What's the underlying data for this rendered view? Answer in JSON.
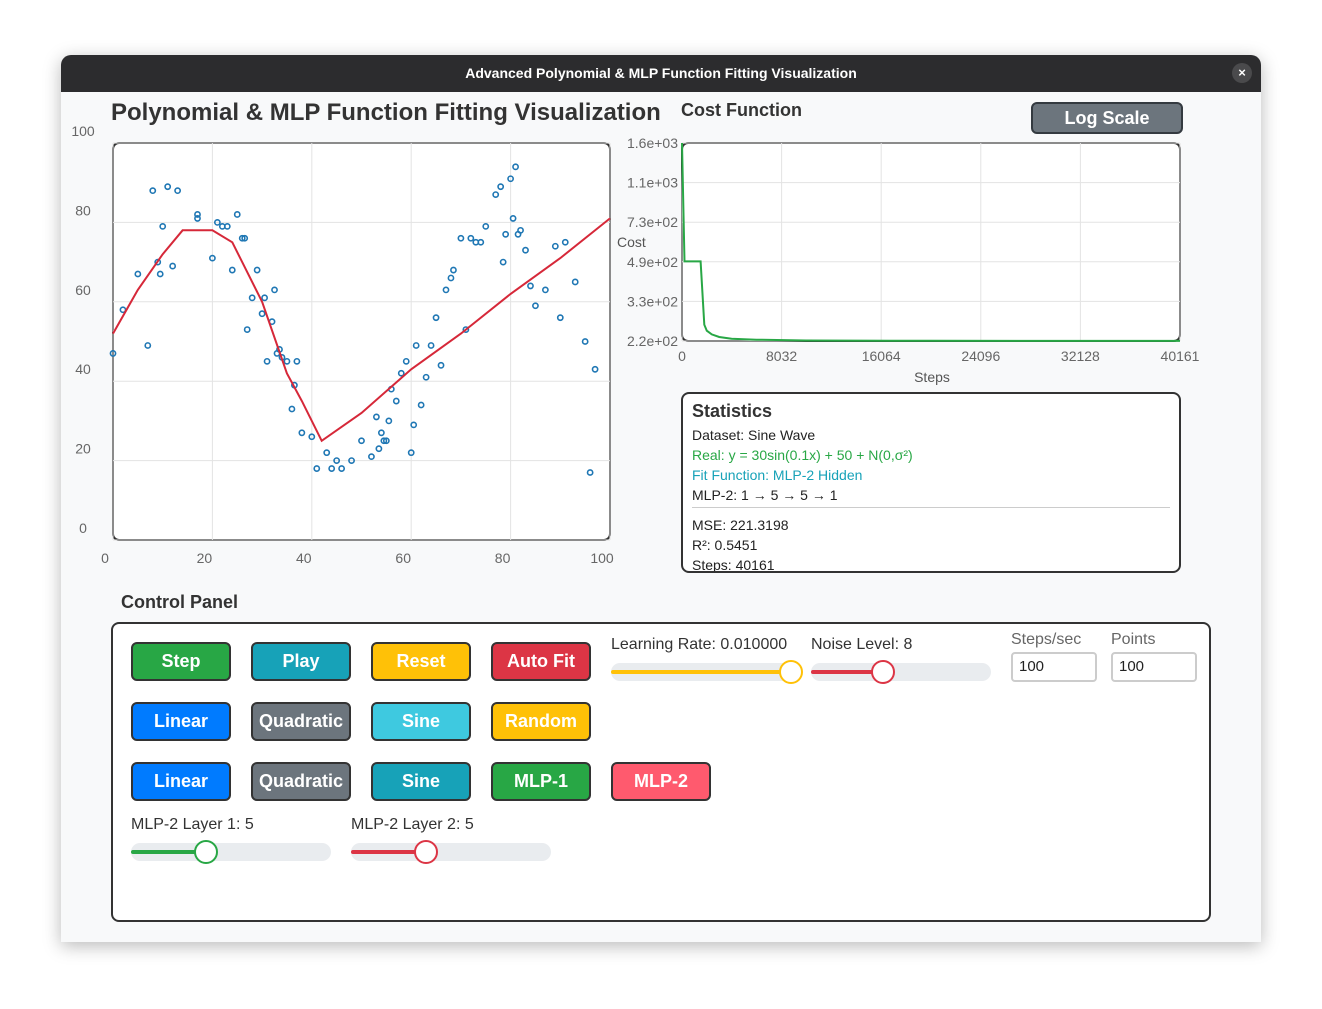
{
  "window": {
    "title": "Advanced Polynomial & MLP Function Fitting Visualization",
    "close_label": "×"
  },
  "main_title": "Polynomial & MLP Function Fitting Visualization",
  "cost": {
    "title": "Cost Function",
    "log_scale_label": "Log Scale"
  },
  "colors": {
    "points": "#1f77b4",
    "fit": "#d62839",
    "cost": "#28a745",
    "formula": "#28a745",
    "fit_text": "#17a2b8"
  },
  "chart_data": [
    {
      "type": "scatter",
      "title": "",
      "xlabel": "",
      "ylabel": "",
      "xlim": [
        0,
        100
      ],
      "ylim": [
        0,
        100
      ],
      "x_ticks": [
        "0",
        "20",
        "40",
        "60",
        "80",
        "100"
      ],
      "y_ticks": [
        "0",
        "20",
        "40",
        "60",
        "80",
        "100"
      ],
      "grid": true,
      "series": [
        {
          "kind": "points",
          "x": [
            0,
            2,
            5,
            7,
            8,
            9,
            9.5,
            10,
            11,
            12,
            13,
            17,
            17,
            20,
            21,
            22,
            23,
            24,
            25,
            26,
            26.5,
            27,
            28,
            29,
            30,
            30.5,
            31,
            32,
            32.5,
            33,
            33.5,
            34,
            35,
            36,
            36.5,
            37,
            38,
            40,
            41,
            43,
            44,
            45,
            46,
            48,
            50,
            52,
            53,
            53.5,
            54,
            54.5,
            55,
            55.5,
            56,
            57,
            58,
            59,
            60,
            60.5,
            61,
            62,
            63,
            64,
            65,
            66,
            67,
            68,
            68.5,
            70,
            71,
            72,
            73,
            74,
            75,
            77,
            78,
            78.5,
            79,
            80,
            80.5,
            81,
            81.5,
            82,
            83,
            84,
            85,
            87,
            89,
            90,
            91,
            93,
            95,
            96,
            97
          ],
          "y": [
            47,
            58,
            67,
            49,
            88,
            70,
            67,
            79,
            89,
            69,
            88,
            81,
            82,
            71,
            80,
            79,
            79,
            68,
            82,
            76,
            76,
            53,
            61,
            68,
            57,
            61,
            45,
            55,
            63,
            47,
            48,
            46,
            45,
            33,
            39,
            45,
            27,
            26,
            18,
            22,
            18,
            20,
            18,
            20,
            25,
            21,
            31,
            23,
            27,
            25,
            25,
            30,
            38,
            35,
            42,
            45,
            22,
            29,
            49,
            34,
            41,
            49,
            56,
            44,
            63,
            66,
            68,
            76,
            53,
            76,
            75,
            75,
            79,
            87,
            89,
            70,
            77,
            91,
            81,
            94,
            77,
            78,
            73,
            64,
            59,
            63,
            74,
            56,
            75,
            65,
            50,
            17,
            43
          ]
        },
        {
          "kind": "fit-line",
          "x": [
            0,
            5,
            10,
            14,
            20,
            24,
            26,
            30,
            35,
            38,
            42,
            50,
            60,
            70,
            80,
            90,
            100
          ],
          "y": [
            52,
            63,
            72,
            78,
            78,
            75,
            70,
            60,
            42,
            35,
            25,
            32,
            43,
            52,
            62,
            71,
            81
          ]
        }
      ]
    },
    {
      "type": "line",
      "title": "Cost Function",
      "xlabel": "Steps",
      "ylabel": "Cost",
      "log_scale": true,
      "xlim": [
        0,
        40161
      ],
      "x_ticks": [
        "0",
        "8032",
        "16064",
        "24096",
        "32128",
        "40161"
      ],
      "y_ticks": [
        "2.2e+02",
        "3.3e+02",
        "4.9e+02",
        "7.3e+02",
        "1.1e+03",
        "1.6e+03"
      ],
      "ylim": [
        221,
        1600
      ],
      "grid": true,
      "series": [
        {
          "x": [
            0,
            200,
            400,
            1500,
            1800,
            2000,
            2400,
            3000,
            4000,
            6000,
            10000,
            20000,
            30000,
            40161
          ],
          "y": [
            1600,
            490,
            490,
            490,
            260,
            245,
            236,
            230,
            226,
            224,
            222,
            221.5,
            221.3,
            221.3
          ]
        }
      ]
    }
  ],
  "stats": {
    "title": "Statistics",
    "dataset": "Dataset: Sine Wave",
    "real": "Real: y = 30sin(0.1x) + 50 + N(0,σ²)",
    "fit": "Fit Function: MLP-2 Hidden",
    "arch": "MLP-2: 1 → 5 → 5 → 1",
    "mse": "MSE: 221.3198",
    "r2": "R²: 0.5451",
    "steps": "Steps: 40161"
  },
  "control": {
    "title": "Control Panel",
    "action_buttons": [
      "Step",
      "Play",
      "Reset",
      "Auto Fit"
    ],
    "dataset_buttons": [
      "Linear",
      "Quadratic",
      "Sine",
      "Random"
    ],
    "fit_buttons": [
      "Linear",
      "Quadratic",
      "Sine",
      "MLP-1",
      "MLP-2"
    ],
    "learning_rate": {
      "label": "Learning Rate: 0.010000",
      "level": 1.0
    },
    "noise": {
      "label": "Noise Level: 8",
      "level": 0.4
    },
    "steps_per_sec": {
      "label": "Steps/sec",
      "value": "100"
    },
    "points": {
      "label": "Points",
      "value": "100"
    },
    "layer1": {
      "label": "MLP-2 Layer 1: 5",
      "level": 0.375
    },
    "layer2": {
      "label": "MLP-2 Layer 2: 5",
      "level": 0.375
    }
  }
}
